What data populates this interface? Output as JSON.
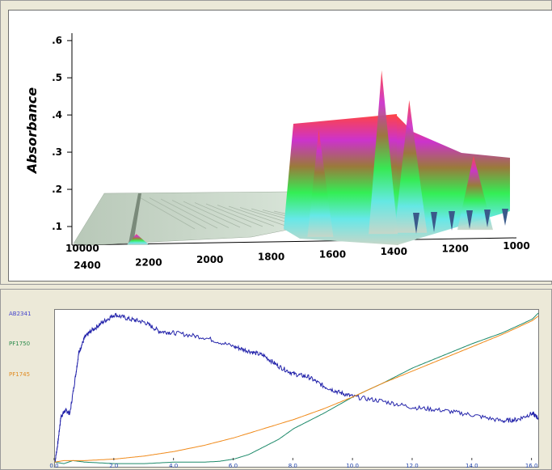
{
  "colors": {
    "background": "#ece9d8",
    "plot_background": "#ffffff",
    "series_blue": "#2222aa",
    "series_green": "#1d8a6a",
    "series_orange": "#f08a1a",
    "legend_blue": "#4444cc",
    "legend_green": "#2a8a4a",
    "legend_orange": "#e08a20"
  },
  "chart_data": [
    {
      "type": "area",
      "title": "",
      "ylabel": "Absorbance",
      "y_ticks": [
        ".1",
        ".2",
        ".3",
        ".4",
        ".5",
        ".6"
      ],
      "ylim": [
        0.05,
        0.62
      ],
      "x_ticks_front": [
        "1000",
        "1200",
        "1400",
        "1600",
        "1800",
        "2000",
        "2200",
        "2400"
      ],
      "x_label_back": "10000",
      "xlim": [
        2400,
        1000
      ],
      "colormap": [
        "#c8d6c8",
        "#66e8e8",
        "#33ee55",
        "#9a7a3a",
        "#cc33cc",
        "#ff4444"
      ],
      "peaks": [
        {
          "x": 2340,
          "height": 0.08
        },
        {
          "x": 1745,
          "height": 0.36
        },
        {
          "x": 1540,
          "height": 0.52
        },
        {
          "x": 1450,
          "height": 0.44
        },
        {
          "x": 1240,
          "height": 0.29
        }
      ]
    },
    {
      "type": "line",
      "title": "",
      "xlabel": "",
      "ylabel": "",
      "x_ticks": [
        "0.0",
        "2.0",
        "4.0",
        "6.0",
        "8.0",
        "10.0",
        "12.0",
        "14.0",
        "16.0"
      ],
      "xlim": [
        0,
        16.2
      ],
      "ylim": [
        0,
        1
      ],
      "legend_placement": "left",
      "series": [
        {
          "name": "AB2341",
          "color": "#2222aa",
          "x": [
            0,
            0.1,
            0.2,
            0.35,
            0.5,
            0.7,
            0.8,
            1.0,
            1.2,
            1.6,
            2.0,
            2.5,
            3.0,
            3.5,
            4.0,
            5.0,
            6.0,
            6.5,
            7.0,
            7.5,
            8.0,
            8.5,
            9.0,
            9.5,
            10.0,
            11.0,
            12.0,
            13.0,
            14.0,
            15.0,
            15.5,
            16.0,
            16.2
          ],
          "y": [
            0.02,
            0.15,
            0.32,
            0.36,
            0.34,
            0.6,
            0.74,
            0.84,
            0.88,
            0.94,
            0.99,
            0.96,
            0.94,
            0.88,
            0.87,
            0.84,
            0.78,
            0.75,
            0.72,
            0.65,
            0.6,
            0.58,
            0.52,
            0.48,
            0.45,
            0.42,
            0.38,
            0.36,
            0.33,
            0.29,
            0.3,
            0.34,
            0.31
          ]
        },
        {
          "name": "PF1750",
          "color": "#1d8a6a",
          "x": [
            0,
            0.3,
            0.6,
            1.0,
            2.0,
            3.0,
            4.0,
            5.0,
            5.5,
            6.0,
            6.5,
            7.0,
            7.5,
            8.0,
            9.0,
            10.0,
            11.0,
            12.0,
            13.0,
            14.0,
            15.0,
            16.0,
            16.2
          ],
          "y": [
            0.02,
            0.01,
            0.03,
            0.02,
            0.01,
            0.01,
            0.02,
            0.02,
            0.025,
            0.04,
            0.07,
            0.12,
            0.17,
            0.24,
            0.34,
            0.45,
            0.54,
            0.64,
            0.72,
            0.8,
            0.87,
            0.96,
            1.0
          ]
        },
        {
          "name": "PF1745",
          "color": "#f08a1a",
          "x": [
            0,
            0.3,
            1.0,
            2.0,
            3.0,
            4.0,
            5.0,
            6.0,
            7.0,
            8.0,
            9.0,
            10.0,
            11.0,
            12.0,
            13.0,
            14.0,
            15.0,
            16.0,
            16.2
          ],
          "y": [
            0.02,
            0.03,
            0.03,
            0.04,
            0.06,
            0.09,
            0.13,
            0.18,
            0.24,
            0.3,
            0.37,
            0.45,
            0.54,
            0.62,
            0.7,
            0.78,
            0.86,
            0.95,
            0.98
          ]
        }
      ]
    }
  ]
}
